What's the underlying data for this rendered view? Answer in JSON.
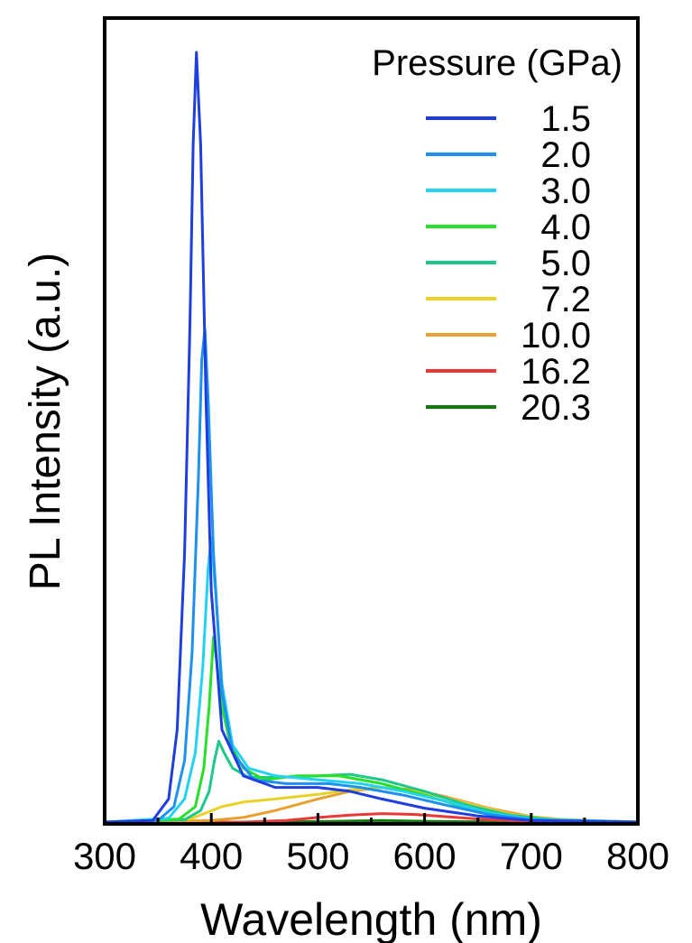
{
  "chart_data": {
    "type": "line",
    "title": "",
    "xlabel": "Wavelength (nm)",
    "ylabel": "PL Intensity (a.u.)",
    "xlim": [
      300,
      800
    ],
    "ylim": [
      0,
      1.0
    ],
    "x_ticks": [
      "300",
      "400",
      "500",
      "600",
      "700",
      "800"
    ],
    "y_ticks": [],
    "legend_title": "Pressure (GPa)",
    "legend_position": "top-right",
    "grid": false,
    "series": [
      {
        "name": "1.5",
        "color": "#1f3ee0",
        "points": [
          [
            300,
            0
          ],
          [
            345,
            0.002
          ],
          [
            360,
            0.03
          ],
          [
            368,
            0.12
          ],
          [
            375,
            0.35
          ],
          [
            380,
            0.65
          ],
          [
            383,
            0.88
          ],
          [
            386,
            1.0
          ],
          [
            390,
            0.88
          ],
          [
            395,
            0.55
          ],
          [
            400,
            0.3
          ],
          [
            410,
            0.12
          ],
          [
            430,
            0.06
          ],
          [
            460,
            0.045
          ],
          [
            500,
            0.045
          ],
          [
            530,
            0.04
          ],
          [
            560,
            0.03
          ],
          [
            600,
            0.018
          ],
          [
            650,
            0.008
          ],
          [
            700,
            0.002
          ],
          [
            800,
            0
          ]
        ]
      },
      {
        "name": "2.0",
        "color": "#1e90f0",
        "points": [
          [
            300,
            0
          ],
          [
            350,
            0.002
          ],
          [
            365,
            0.02
          ],
          [
            375,
            0.08
          ],
          [
            382,
            0.22
          ],
          [
            388,
            0.45
          ],
          [
            391,
            0.6
          ],
          [
            394,
            0.64
          ],
          [
            397,
            0.55
          ],
          [
            402,
            0.35
          ],
          [
            410,
            0.17
          ],
          [
            420,
            0.09
          ],
          [
            440,
            0.055
          ],
          [
            470,
            0.05
          ],
          [
            510,
            0.05
          ],
          [
            540,
            0.045
          ],
          [
            580,
            0.035
          ],
          [
            620,
            0.022
          ],
          [
            660,
            0.01
          ],
          [
            700,
            0.003
          ],
          [
            800,
            0
          ]
        ]
      },
      {
        "name": "3.0",
        "color": "#22d2f0",
        "points": [
          [
            300,
            0
          ],
          [
            360,
            0.005
          ],
          [
            375,
            0.03
          ],
          [
            385,
            0.09
          ],
          [
            392,
            0.2
          ],
          [
            397,
            0.33
          ],
          [
            400,
            0.37
          ],
          [
            404,
            0.3
          ],
          [
            410,
            0.18
          ],
          [
            420,
            0.1
          ],
          [
            435,
            0.07
          ],
          [
            460,
            0.06
          ],
          [
            500,
            0.055
          ],
          [
            540,
            0.05
          ],
          [
            580,
            0.04
          ],
          [
            620,
            0.027
          ],
          [
            660,
            0.012
          ],
          [
            700,
            0.004
          ],
          [
            800,
            0
          ]
        ]
      },
      {
        "name": "4.0",
        "color": "#28e028",
        "points": [
          [
            300,
            0
          ],
          [
            370,
            0.004
          ],
          [
            385,
            0.02
          ],
          [
            393,
            0.07
          ],
          [
            398,
            0.15
          ],
          [
            402,
            0.24
          ],
          [
            405,
            0.21
          ],
          [
            410,
            0.15
          ],
          [
            418,
            0.1
          ],
          [
            430,
            0.07
          ],
          [
            450,
            0.055
          ],
          [
            480,
            0.06
          ],
          [
            520,
            0.06
          ],
          [
            560,
            0.05
          ],
          [
            600,
            0.035
          ],
          [
            640,
            0.018
          ],
          [
            680,
            0.007
          ],
          [
            720,
            0.002
          ],
          [
            800,
            0
          ]
        ]
      },
      {
        "name": "5.0",
        "color": "#1ec88a",
        "points": [
          [
            300,
            0
          ],
          [
            375,
            0.003
          ],
          [
            390,
            0.015
          ],
          [
            398,
            0.04
          ],
          [
            403,
            0.08
          ],
          [
            407,
            0.105
          ],
          [
            412,
            0.09
          ],
          [
            420,
            0.07
          ],
          [
            435,
            0.058
          ],
          [
            460,
            0.058
          ],
          [
            500,
            0.06
          ],
          [
            530,
            0.062
          ],
          [
            560,
            0.055
          ],
          [
            600,
            0.04
          ],
          [
            640,
            0.022
          ],
          [
            680,
            0.009
          ],
          [
            720,
            0.003
          ],
          [
            800,
            0
          ]
        ]
      },
      {
        "name": "7.2",
        "color": "#e8d22a",
        "points": [
          [
            300,
            0
          ],
          [
            380,
            0.004
          ],
          [
            395,
            0.012
          ],
          [
            410,
            0.02
          ],
          [
            430,
            0.026
          ],
          [
            460,
            0.03
          ],
          [
            500,
            0.036
          ],
          [
            530,
            0.042
          ],
          [
            560,
            0.045
          ],
          [
            600,
            0.038
          ],
          [
            640,
            0.024
          ],
          [
            680,
            0.01
          ],
          [
            720,
            0.004
          ],
          [
            800,
            0
          ]
        ]
      },
      {
        "name": "10.0",
        "color": "#e8a030",
        "points": [
          [
            300,
            0
          ],
          [
            400,
            0.002
          ],
          [
            430,
            0.006
          ],
          [
            460,
            0.015
          ],
          [
            500,
            0.03
          ],
          [
            530,
            0.04
          ],
          [
            560,
            0.045
          ],
          [
            590,
            0.042
          ],
          [
            620,
            0.033
          ],
          [
            660,
            0.018
          ],
          [
            700,
            0.007
          ],
          [
            740,
            0.002
          ],
          [
            800,
            0
          ]
        ]
      },
      {
        "name": "16.2",
        "color": "#e83838",
        "points": [
          [
            300,
            0
          ],
          [
            430,
            0
          ],
          [
            470,
            0.002
          ],
          [
            500,
            0.006
          ],
          [
            530,
            0.009
          ],
          [
            560,
            0.011
          ],
          [
            590,
            0.01
          ],
          [
            620,
            0.007
          ],
          [
            660,
            0.003
          ],
          [
            700,
            0.001
          ],
          [
            800,
            0
          ]
        ]
      },
      {
        "name": "20.3",
        "color": "#137a13",
        "points": [
          [
            300,
            0
          ],
          [
            450,
            0
          ],
          [
            520,
            0.001
          ],
          [
            560,
            0.002
          ],
          [
            600,
            0.001
          ],
          [
            680,
            0
          ],
          [
            800,
            0
          ]
        ]
      }
    ]
  }
}
